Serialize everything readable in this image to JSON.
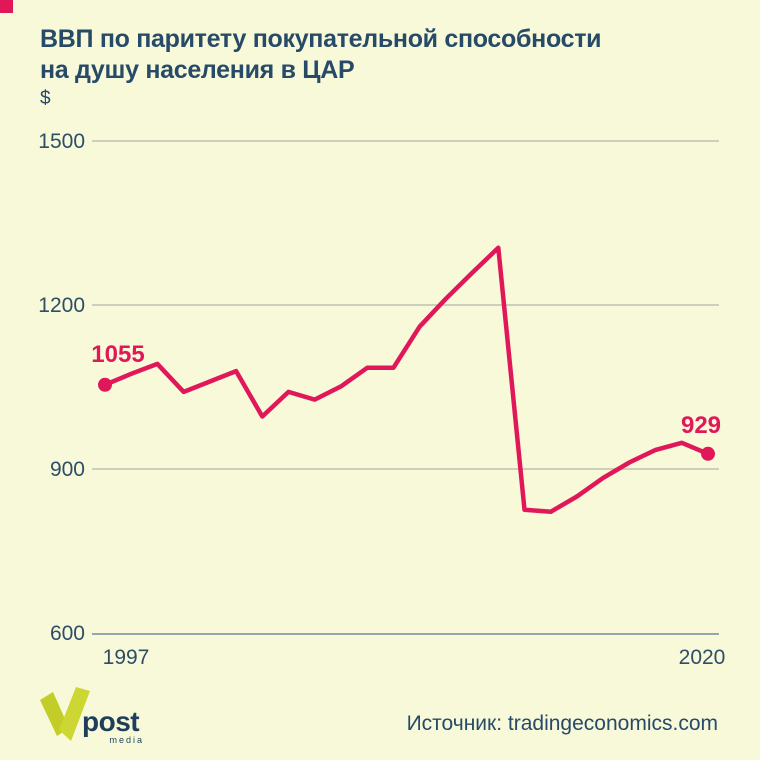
{
  "header": {
    "title_lines": [
      "ВВП по паритету покупательной способности",
      "на душу населения в ЦАР"
    ],
    "unit": "$"
  },
  "chart_data": {
    "type": "line",
    "title": "ВВП по паритету покупательной способности на душу населения в ЦАР",
    "ylabel": "$",
    "x": [
      1997,
      1998,
      1999,
      2000,
      2001,
      2002,
      2003,
      2004,
      2005,
      2006,
      2007,
      2008,
      2009,
      2010,
      2011,
      2012,
      2013,
      2014,
      2015,
      2016,
      2017,
      2018,
      2019,
      2020
    ],
    "values": [
      1055,
      1075,
      1093,
      1042,
      1061,
      1080,
      997,
      1042,
      1028,
      1052,
      1086,
      1086,
      1161,
      1212,
      1259,
      1305,
      827,
      823,
      851,
      885,
      913,
      936,
      949,
      929
    ],
    "ylim": [
      600,
      1500
    ],
    "y_ticks": [
      "1500",
      "1200",
      "900",
      "600"
    ],
    "x_ticks": [
      "1997",
      "2020"
    ],
    "grid": "horizontal",
    "legend": "none",
    "line_color": "#e0185a",
    "start_point_label": "1055",
    "end_point_label": "929"
  },
  "footer": {
    "logo_post": "post",
    "logo_media": "media",
    "source": "Источник: tradingeconomics.com"
  },
  "colors": {
    "background": "#f7f9d9",
    "text_navy": "#264a67",
    "series_crimson": "#e0185a",
    "gridline_light": "#cbd0be",
    "baseline_dark": "#98a3b0",
    "logo_green": "#c7d22f"
  }
}
